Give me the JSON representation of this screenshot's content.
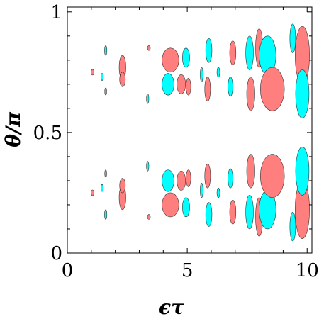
{
  "chart_data": {
    "type": "contour",
    "xlabel": "ϵτ",
    "ylabel": "θ/π",
    "xlim": [
      0,
      10.2
    ],
    "ylim": [
      0,
      1.02
    ],
    "xticks": [
      0,
      5,
      10
    ],
    "yticks": [
      0,
      0.5,
      1
    ],
    "xtick_labels": [
      "0",
      "5",
      "10"
    ],
    "ytick_labels": [
      "0",
      "0.5",
      "1"
    ],
    "grid": false,
    "colors": {
      "positive": "#ff7f7f",
      "negative": "#00ffff",
      "outline": "#333333"
    },
    "contours": [
      {
        "sign": "positive",
        "x": 1.05,
        "y": 0.75,
        "rx": 0.06,
        "ry": 0.012
      },
      {
        "sign": "negative",
        "x": 1.45,
        "y": 0.73,
        "rx": 0.05,
        "ry": 0.015
      },
      {
        "sign": "negative",
        "x": 1.6,
        "y": 0.84,
        "rx": 0.05,
        "ry": 0.02
      },
      {
        "sign": "positive",
        "x": 1.6,
        "y": 0.67,
        "rx": 0.04,
        "ry": 0.015
      },
      {
        "sign": "positive",
        "x": 2.3,
        "y": 0.77,
        "rx": 0.14,
        "ry": 0.05
      },
      {
        "sign": "positive",
        "x": 2.3,
        "y": 0.72,
        "rx": 0.12,
        "ry": 0.03
      },
      {
        "sign": "positive",
        "x": 3.4,
        "y": 0.85,
        "rx": 0.06,
        "ry": 0.01
      },
      {
        "sign": "negative",
        "x": 3.35,
        "y": 0.64,
        "rx": 0.05,
        "ry": 0.02
      },
      {
        "sign": "positive",
        "x": 4.3,
        "y": 0.8,
        "rx": 0.35,
        "ry": 0.05
      },
      {
        "sign": "negative",
        "x": 4.2,
        "y": 0.7,
        "rx": 0.25,
        "ry": 0.045
      },
      {
        "sign": "positive",
        "x": 4.75,
        "y": 0.7,
        "rx": 0.18,
        "ry": 0.04
      },
      {
        "sign": "negative",
        "x": 4.95,
        "y": 0.81,
        "rx": 0.15,
        "ry": 0.04
      },
      {
        "sign": "positive",
        "x": 5.05,
        "y": 0.69,
        "rx": 0.1,
        "ry": 0.035
      },
      {
        "sign": "negative",
        "x": 5.6,
        "y": 0.74,
        "rx": 0.06,
        "ry": 0.03
      },
      {
        "sign": "negative",
        "x": 5.9,
        "y": 0.84,
        "rx": 0.13,
        "ry": 0.05
      },
      {
        "sign": "positive",
        "x": 5.85,
        "y": 0.68,
        "rx": 0.12,
        "ry": 0.05
      },
      {
        "sign": "negative",
        "x": 6.3,
        "y": 0.75,
        "rx": 0.06,
        "ry": 0.02
      },
      {
        "sign": "positive",
        "x": 6.9,
        "y": 0.83,
        "rx": 0.13,
        "ry": 0.05
      },
      {
        "sign": "negative",
        "x": 6.8,
        "y": 0.69,
        "rx": 0.1,
        "ry": 0.04
      },
      {
        "sign": "negative",
        "x": 7.6,
        "y": 0.83,
        "rx": 0.16,
        "ry": 0.07
      },
      {
        "sign": "positive",
        "x": 7.65,
        "y": 0.66,
        "rx": 0.17,
        "ry": 0.07
      },
      {
        "sign": "positive",
        "x": 8.0,
        "y": 0.85,
        "rx": 0.15,
        "ry": 0.08
      },
      {
        "sign": "negative",
        "x": 8.35,
        "y": 0.82,
        "rx": 0.35,
        "ry": 0.08
      },
      {
        "sign": "positive",
        "x": 8.55,
        "y": 0.68,
        "rx": 0.5,
        "ry": 0.09
      },
      {
        "sign": "negative",
        "x": 9.4,
        "y": 0.89,
        "rx": 0.12,
        "ry": 0.06
      },
      {
        "sign": "positive",
        "x": 9.8,
        "y": 0.82,
        "rx": 0.3,
        "ry": 0.12
      },
      {
        "sign": "negative",
        "x": 9.8,
        "y": 0.66,
        "rx": 0.28,
        "ry": 0.1
      },
      {
        "sign": "positive",
        "x": 1.05,
        "y": 0.25,
        "rx": 0.06,
        "ry": 0.012
      },
      {
        "sign": "negative",
        "x": 1.45,
        "y": 0.27,
        "rx": 0.05,
        "ry": 0.015
      },
      {
        "sign": "negative",
        "x": 1.6,
        "y": 0.16,
        "rx": 0.05,
        "ry": 0.02
      },
      {
        "sign": "positive",
        "x": 1.6,
        "y": 0.33,
        "rx": 0.04,
        "ry": 0.015
      },
      {
        "sign": "positive",
        "x": 2.3,
        "y": 0.23,
        "rx": 0.14,
        "ry": 0.05
      },
      {
        "sign": "positive",
        "x": 2.3,
        "y": 0.28,
        "rx": 0.12,
        "ry": 0.03
      },
      {
        "sign": "positive",
        "x": 3.4,
        "y": 0.15,
        "rx": 0.06,
        "ry": 0.01
      },
      {
        "sign": "negative",
        "x": 3.35,
        "y": 0.36,
        "rx": 0.05,
        "ry": 0.02
      },
      {
        "sign": "positive",
        "x": 4.3,
        "y": 0.2,
        "rx": 0.35,
        "ry": 0.05
      },
      {
        "sign": "negative",
        "x": 4.2,
        "y": 0.3,
        "rx": 0.25,
        "ry": 0.045
      },
      {
        "sign": "positive",
        "x": 4.75,
        "y": 0.3,
        "rx": 0.18,
        "ry": 0.04
      },
      {
        "sign": "negative",
        "x": 4.95,
        "y": 0.19,
        "rx": 0.15,
        "ry": 0.04
      },
      {
        "sign": "positive",
        "x": 5.05,
        "y": 0.31,
        "rx": 0.1,
        "ry": 0.035
      },
      {
        "sign": "negative",
        "x": 5.6,
        "y": 0.26,
        "rx": 0.06,
        "ry": 0.03
      },
      {
        "sign": "negative",
        "x": 5.9,
        "y": 0.16,
        "rx": 0.13,
        "ry": 0.05
      },
      {
        "sign": "positive",
        "x": 5.85,
        "y": 0.32,
        "rx": 0.12,
        "ry": 0.05
      },
      {
        "sign": "negative",
        "x": 6.3,
        "y": 0.25,
        "rx": 0.06,
        "ry": 0.02
      },
      {
        "sign": "positive",
        "x": 6.9,
        "y": 0.17,
        "rx": 0.13,
        "ry": 0.05
      },
      {
        "sign": "negative",
        "x": 6.8,
        "y": 0.31,
        "rx": 0.1,
        "ry": 0.04
      },
      {
        "sign": "negative",
        "x": 7.6,
        "y": 0.17,
        "rx": 0.16,
        "ry": 0.07
      },
      {
        "sign": "positive",
        "x": 7.65,
        "y": 0.34,
        "rx": 0.17,
        "ry": 0.07
      },
      {
        "sign": "positive",
        "x": 8.0,
        "y": 0.15,
        "rx": 0.15,
        "ry": 0.08
      },
      {
        "sign": "negative",
        "x": 8.35,
        "y": 0.18,
        "rx": 0.35,
        "ry": 0.08
      },
      {
        "sign": "positive",
        "x": 8.55,
        "y": 0.32,
        "rx": 0.5,
        "ry": 0.09
      },
      {
        "sign": "negative",
        "x": 9.4,
        "y": 0.11,
        "rx": 0.12,
        "ry": 0.06
      },
      {
        "sign": "positive",
        "x": 9.8,
        "y": 0.18,
        "rx": 0.3,
        "ry": 0.12
      },
      {
        "sign": "negative",
        "x": 9.8,
        "y": 0.34,
        "rx": 0.28,
        "ry": 0.1
      }
    ]
  }
}
